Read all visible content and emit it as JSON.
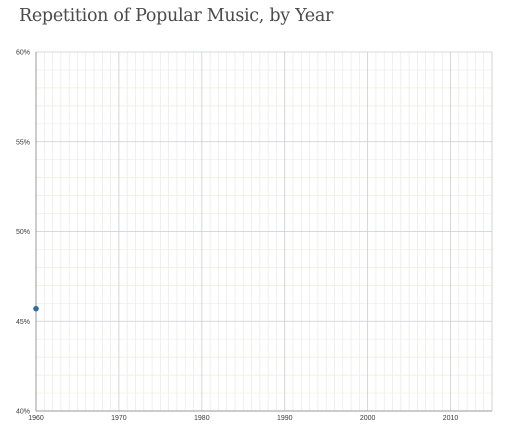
{
  "chart_data": {
    "type": "scatter",
    "title": "Repetition of Popular Music, by Year",
    "xlabel": "",
    "ylabel": "",
    "xlim": [
      1960,
      2015
    ],
    "ylim": [
      40,
      60
    ],
    "x_ticks": [
      1960,
      1970,
      1980,
      1990,
      2000,
      2010
    ],
    "y_ticks": [
      40,
      45,
      50,
      55,
      60
    ],
    "x_tick_labels": [
      "1960",
      "1970",
      "1980",
      "1990",
      "2000",
      "2010"
    ],
    "y_tick_labels": [
      "40%",
      "45%",
      "50%",
      "55%",
      "60%"
    ],
    "grid": true,
    "series": [
      {
        "x": [
          1960
        ],
        "y": [
          45.7
        ],
        "color": "#2f6f9f"
      }
    ],
    "colors": {
      "major_grid": "#c9ccd1",
      "minor_grid_vertical": "#e6e6e6",
      "minor_grid_horizontal": "#ecefd8",
      "axis": "#9a9a9a"
    }
  }
}
